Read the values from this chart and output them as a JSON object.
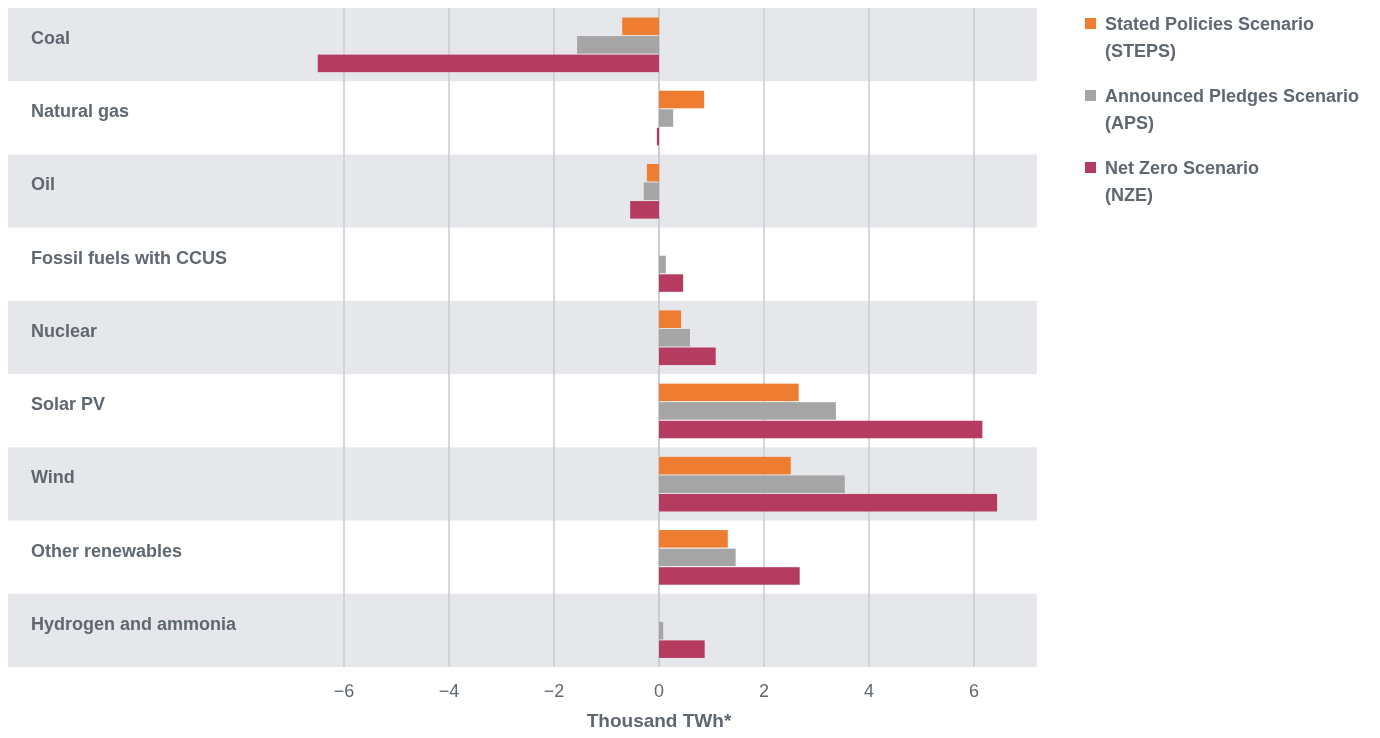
{
  "chart_data": {
    "type": "bar",
    "orientation": "horizontal",
    "xlabel": "Thousand TWh*",
    "categories": [
      "Coal",
      "Natural gas",
      "Oil",
      "Fossil fuels with CCUS",
      "Nuclear",
      "Solar PV",
      "Wind",
      "Other renewables",
      "Hydrogen and ammonia"
    ],
    "series": [
      {
        "name": "Stated Policies Scenario (STEPS)",
        "color": "#ee7d31",
        "values": [
          -0.7,
          0.86,
          -0.23,
          null,
          0.42,
          2.66,
          2.51,
          1.31,
          null
        ]
      },
      {
        "name": "Announced Pledges Scenario (APS)",
        "color": "#a5a5a5",
        "values": [
          -1.56,
          0.27,
          -0.29,
          0.13,
          0.59,
          3.37,
          3.54,
          1.46,
          0.08
        ]
      },
      {
        "name": "Net Zero Scenario (NZE)",
        "color": "#b53c60",
        "values": [
          -6.5,
          -0.04,
          -0.55,
          0.46,
          1.08,
          6.16,
          6.44,
          2.68,
          0.87
        ]
      }
    ],
    "xlim": [
      -12.4,
      7.2
    ],
    "xticks": [
      {
        "value": -6,
        "label": "−6"
      },
      {
        "value": -4,
        "label": "−4"
      },
      {
        "value": -2,
        "label": "−2"
      },
      0,
      2,
      4,
      6
    ],
    "bands": [
      {
        "axis": "y",
        "from": "Coal",
        "to": "Coal",
        "color": "#e6e7eb"
      },
      {
        "axis": "y",
        "from": "Oil",
        "to": "Oil",
        "color": "#e6e7eb"
      },
      {
        "axis": "y",
        "from": "Nuclear",
        "to": "Nuclear",
        "color": "#e6e7eb"
      },
      {
        "axis": "y",
        "from": "Wind",
        "to": "Wind",
        "color": "#e6e7eb"
      },
      {
        "axis": "y",
        "from": "Hydrogen and ammonia",
        "to": "Hydrogen and ammonia",
        "color": "#e6e7eb"
      }
    ],
    "grid": "x",
    "legend": "top right"
  }
}
